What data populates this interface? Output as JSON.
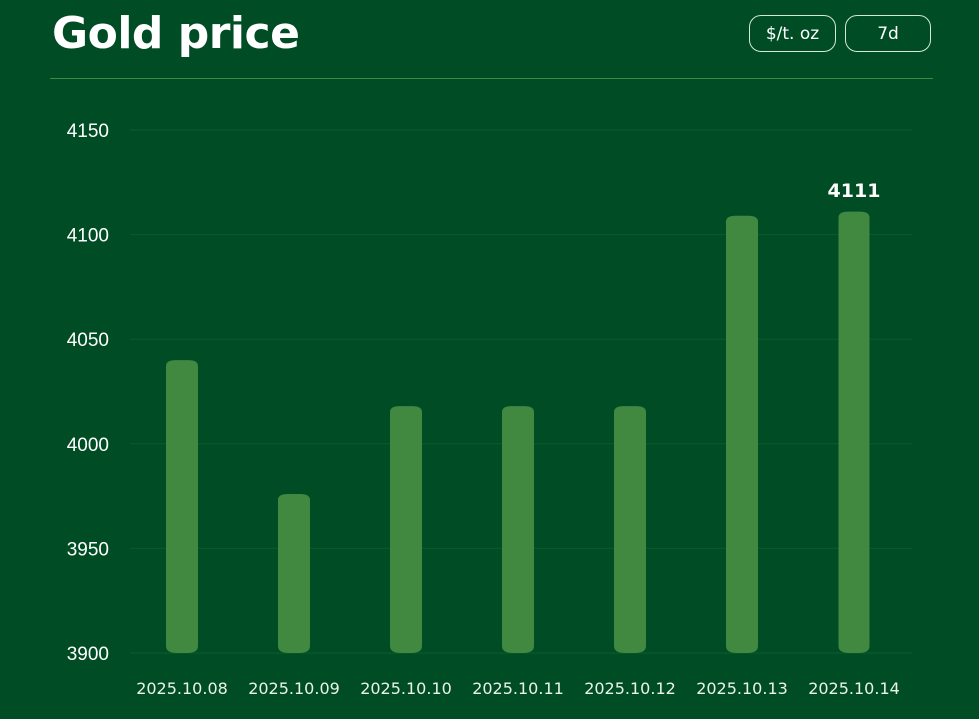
{
  "header": {
    "title": "Gold price",
    "unit_button": "$/t. oz",
    "range_button": "7d"
  },
  "colors": {
    "background": "#004d25",
    "bar": "#418841",
    "grid": "#0b5a2c",
    "divider": "#3f8b45"
  },
  "chart_data": {
    "type": "bar",
    "categories": [
      "2025.10.08",
      "2025.10.09",
      "2025.10.10",
      "2025.10.11",
      "2025.10.12",
      "2025.10.13",
      "2025.10.14"
    ],
    "values": [
      4040,
      3976,
      4018,
      4018,
      4018,
      4109,
      4111
    ],
    "ylim": [
      3900,
      4150
    ],
    "yticks": [
      3900,
      3950,
      4000,
      4050,
      4100,
      4150
    ],
    "highlight_label": "4111",
    "grid": true,
    "title": "",
    "xlabel": "",
    "ylabel": ""
  }
}
